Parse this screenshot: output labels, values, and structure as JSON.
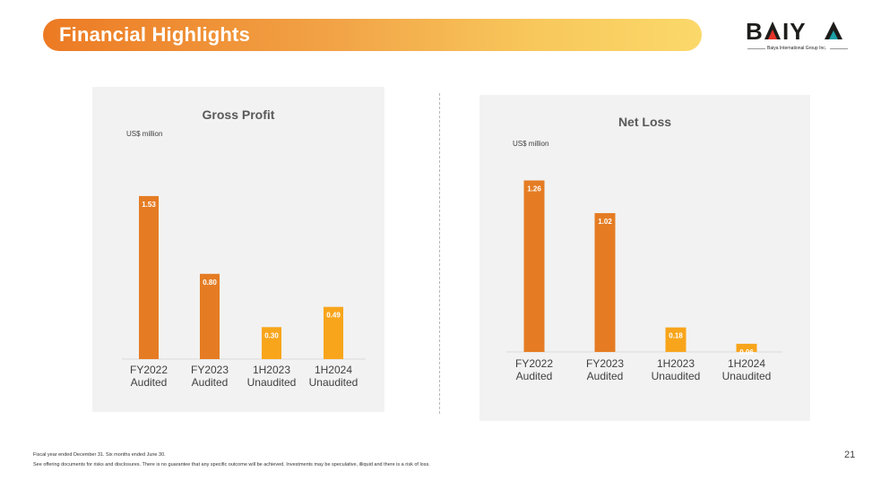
{
  "header": {
    "title": "Financial Highlights"
  },
  "logo": {
    "name": "BAIYA",
    "subtitle": "Baiya International Group Inc."
  },
  "colors": {
    "primary_bar": "#e57c23",
    "secondary_bar": "#f8a51b",
    "banner_start": "#ec7a23",
    "banner_end": "#fbd86a"
  },
  "chart_data": [
    {
      "type": "bar",
      "title": "Gross Profit",
      "ylabel": "US$ million",
      "categories": [
        "FY2022\nAudited",
        "FY2023\nAudited",
        "1H2023\nUnaudited",
        "1H2024\nUnaudited"
      ],
      "values": [
        1.53,
        0.8,
        0.3,
        0.49
      ],
      "labels": [
        "1.53",
        "0.80",
        "0.30",
        "0.49"
      ],
      "ylim": [
        0,
        2.0
      ],
      "grid": false
    },
    {
      "type": "bar",
      "title": "Net Loss",
      "ylabel": "US$ million",
      "categories": [
        "FY2022\nAudited",
        "FY2023\nAudited",
        "1H2023\nUnaudited",
        "1H2024\nUnaudited"
      ],
      "values": [
        1.26,
        1.02,
        0.18,
        0.06
      ],
      "labels": [
        "1.26",
        "1.02",
        "0.18",
        "0.06"
      ],
      "ylim": [
        0,
        1.5
      ],
      "grid": false
    }
  ],
  "footer": {
    "note1": "Fiscal year ended December 31. Six months ended June 30.",
    "note2": "See offering documents for risks and disclosures. There is no guarantee that any specific outcome will be achieved. Investments may be speculative, illiquid and there is a risk of loss.",
    "page_number": "21"
  }
}
